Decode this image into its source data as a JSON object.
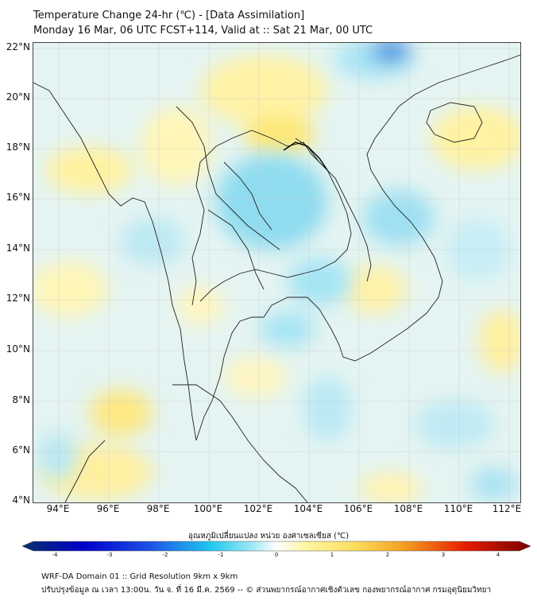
{
  "header": {
    "title": "Temperature Change 24-hr (℃) - [Data Assimilation]",
    "subtitle": "Monday 16 Mar, 06 UTC FCST+114, Valid at :: Sat 21 Mar, 00 UTC"
  },
  "map": {
    "lat_labels": [
      "22°N",
      "20°N",
      "18°N",
      "16°N",
      "14°N",
      "12°N",
      "10°N",
      "8°N",
      "6°N",
      "4°N"
    ],
    "lon_labels": [
      "94°E",
      "96°E",
      "98°E",
      "100°E",
      "102°E",
      "104°E",
      "106°E",
      "108°E",
      "110°E",
      "112°E"
    ],
    "lat_range": [
      4,
      22.2
    ],
    "lon_range": [
      93,
      112.4
    ]
  },
  "colorbar": {
    "label": "อุณหภูมิเปลี่ยนแปลง หน่วย องศาเซลเซียส (℃)",
    "ticks": [
      "-4",
      "-3",
      "-2",
      "-1",
      "0",
      "1",
      "2",
      "3",
      "4"
    ],
    "range": [
      -4,
      4
    ],
    "colors": [
      "#08306b",
      "#0000c8",
      "#1e50e6",
      "#1ec8f0",
      "#9be8f5",
      "#ffffff",
      "#fff5a0",
      "#fde060",
      "#f5a020",
      "#e61e00",
      "#780000"
    ]
  },
  "footer": {
    "line1": "WRF-DA Domain 01 :: Grid Resolution 9km x 9km",
    "line2": "ปรับปรุงข้อมูล ณ เวลา 13:00น. วัน จ. ที่ 16 มี.ค. 2569 -- © ส่วนพยากรณ์อากาศเชิงตัวเลข กองพยากรณ์อากาศ กรมอุตุนิยมวิทยา"
  }
}
